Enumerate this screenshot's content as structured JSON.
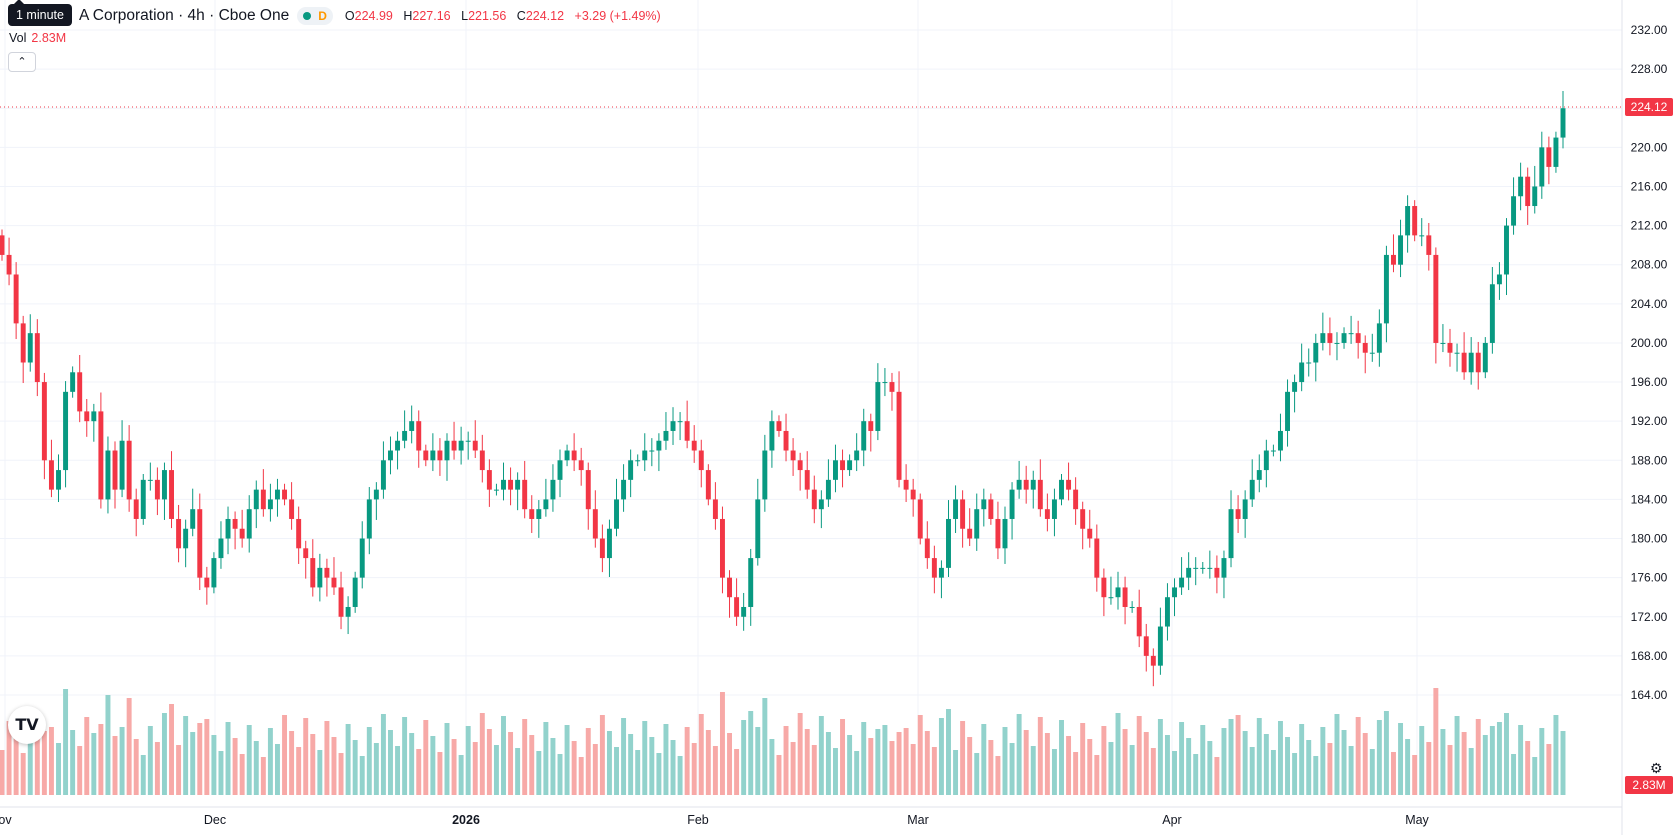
{
  "legend": {
    "title": "A Corporation · 4h · Cboe One",
    "d_badge": "D",
    "o_label": "O",
    "o_value": "224.99",
    "h_label": "H",
    "h_value": "227.16",
    "l_label": "L",
    "l_value": "221.56",
    "c_label": "C",
    "c_value": "224.12",
    "change": "+3.29 (+1.49%)"
  },
  "tooltip": "1 minute",
  "volume_legend": {
    "label": "Vol",
    "value": "2.83M"
  },
  "collapse_icon": "chevron-up-icon",
  "logo": "TV",
  "colors": {
    "up": "#089981",
    "down": "#f23645",
    "up_vol": "#92d2cc",
    "down_vol": "#f7a9a7",
    "grid": "#f0f3fa"
  },
  "chart_data": {
    "type": "candlestick",
    "y_axis_side": "right",
    "ylim": [
      160,
      234
    ],
    "y_ticks": [
      "232.00",
      "228.00",
      "224.00",
      "220.00",
      "216.00",
      "212.00",
      "208.00",
      "204.00",
      "200.00",
      "196.00",
      "192.00",
      "188.00",
      "184.00",
      "180.00",
      "176.00",
      "172.00",
      "168.00",
      "164.00"
    ],
    "x_ticks": [
      "ov",
      "Dec",
      "2026",
      "Feb",
      "Mar",
      "Apr",
      "May"
    ],
    "last_price_label": "224.12",
    "last_volume_label": "2.83M",
    "grid": true,
    "close": [
      209,
      207,
      202,
      198,
      201,
      196,
      188,
      185,
      187,
      195,
      197,
      193,
      192,
      193,
      184,
      189,
      185,
      190,
      184,
      182,
      186,
      186,
      184,
      187,
      182,
      179,
      181,
      183,
      176,
      175,
      178,
      180,
      182,
      181,
      180,
      183,
      185,
      183,
      184,
      185,
      184,
      182,
      179,
      178,
      175,
      177,
      176,
      175,
      172,
      173,
      176,
      180,
      184,
      185,
      188,
      189,
      190,
      191,
      192,
      189,
      188,
      189,
      188,
      190,
      189,
      190,
      190,
      189,
      187,
      185,
      185,
      186,
      185,
      186,
      183,
      182,
      183,
      184,
      186,
      188,
      189,
      188,
      187,
      183,
      180,
      178,
      181,
      184,
      186,
      188,
      188,
      189,
      189,
      190,
      191,
      192,
      192,
      190,
      189,
      187,
      184,
      182,
      176,
      174,
      172,
      173,
      178,
      184,
      189,
      192,
      191,
      189,
      188,
      187,
      185,
      183,
      184,
      186,
      188,
      187,
      188,
      189,
      192,
      191,
      196,
      196,
      195,
      186,
      185,
      184,
      180,
      178,
      176,
      177,
      182,
      184,
      181,
      180,
      183,
      184,
      182,
      179,
      182,
      185,
      186,
      185,
      186,
      183,
      182,
      184,
      186,
      185,
      183,
      181,
      180,
      176,
      174,
      174,
      175,
      173,
      173,
      170,
      168,
      167,
      171,
      174,
      175,
      176,
      177,
      177,
      177,
      177,
      176,
      178,
      183,
      182,
      184,
      186,
      187,
      189,
      189,
      191,
      195,
      196,
      198,
      198,
      200,
      201,
      200,
      200,
      201,
      201,
      200,
      199,
      199,
      202,
      209,
      208,
      211,
      214,
      211,
      211,
      209,
      200,
      200,
      199,
      199,
      197,
      199,
      197,
      200,
      206,
      207,
      212,
      215,
      217,
      214,
      216,
      220,
      218,
      221,
      224
    ]
  }
}
